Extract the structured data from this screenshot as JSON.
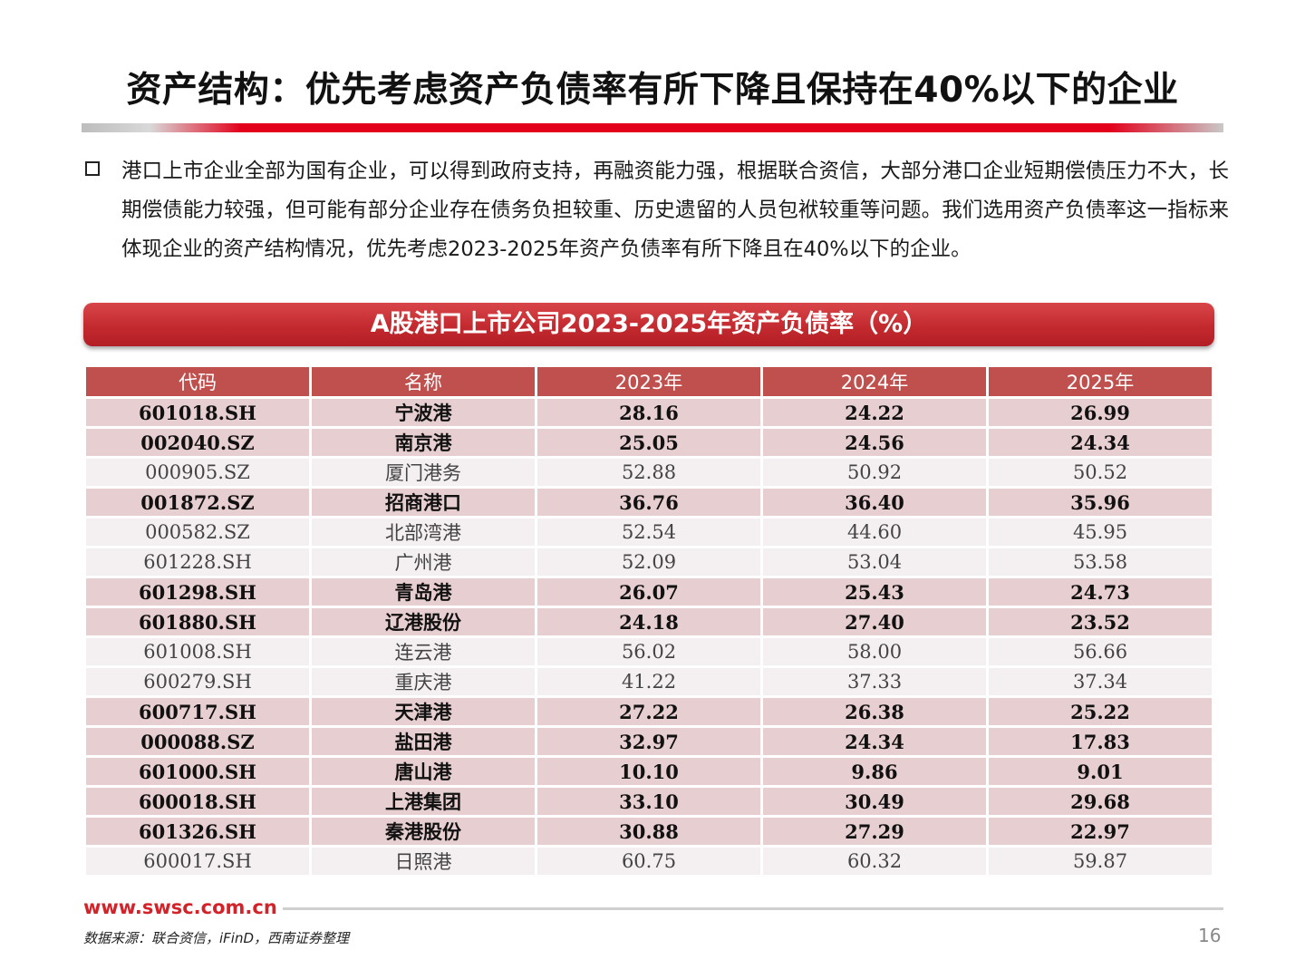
{
  "title": "资产结构：优先考虑资产负债率有所下降且保持在40%以下的企业",
  "bullet_text": "港口上市企业全部为国有企业，可以得到政府支持，再融资能力强，根据联合资信，大部分港口企业短期偿债压力不大，长期偿债能力较强，但可能有部分企业存在债务负担较重、历史遗留的人员包袱较重等问题。我们选用资产负债率这一指标来体现企业的资产结构情况，优先考虑2023-2025年资产负债率有所下降且在40%以下的企业。",
  "table": {
    "title": "A股港口上市公司2023-2025年资产负债率（%）",
    "headers": [
      "代码",
      "名称",
      "2023年",
      "2024年",
      "2025年"
    ],
    "rows": [
      {
        "code": "601018.SH",
        "name": "宁波港",
        "y2023": "28.16",
        "y2024": "24.22",
        "y2025": "26.99",
        "highlight": true
      },
      {
        "code": "002040.SZ",
        "name": "南京港",
        "y2023": "25.05",
        "y2024": "24.56",
        "y2025": "24.34",
        "highlight": true
      },
      {
        "code": "000905.SZ",
        "name": "厦门港务",
        "y2023": "52.88",
        "y2024": "50.92",
        "y2025": "50.52",
        "highlight": false
      },
      {
        "code": "001872.SZ",
        "name": "招商港口",
        "y2023": "36.76",
        "y2024": "36.40",
        "y2025": "35.96",
        "highlight": true
      },
      {
        "code": "000582.SZ",
        "name": "北部湾港",
        "y2023": "52.54",
        "y2024": "44.60",
        "y2025": "45.95",
        "highlight": false
      },
      {
        "code": "601228.SH",
        "name": "广州港",
        "y2023": "52.09",
        "y2024": "53.04",
        "y2025": "53.58",
        "highlight": false
      },
      {
        "code": "601298.SH",
        "name": "青岛港",
        "y2023": "26.07",
        "y2024": "25.43",
        "y2025": "24.73",
        "highlight": true
      },
      {
        "code": "601880.SH",
        "name": "辽港股份",
        "y2023": "24.18",
        "y2024": "27.40",
        "y2025": "23.52",
        "highlight": true
      },
      {
        "code": "601008.SH",
        "name": "连云港",
        "y2023": "56.02",
        "y2024": "58.00",
        "y2025": "56.66",
        "highlight": false
      },
      {
        "code": "600279.SH",
        "name": "重庆港",
        "y2023": "41.22",
        "y2024": "37.33",
        "y2025": "37.34",
        "highlight": false
      },
      {
        "code": "600717.SH",
        "name": "天津港",
        "y2023": "27.22",
        "y2024": "26.38",
        "y2025": "25.22",
        "highlight": true
      },
      {
        "code": "000088.SZ",
        "name": "盐田港",
        "y2023": "32.97",
        "y2024": "24.34",
        "y2025": "17.83",
        "highlight": true
      },
      {
        "code": "601000.SH",
        "name": "唐山港",
        "y2023": "10.10",
        "y2024": "9.86",
        "y2025": "9.01",
        "highlight": true
      },
      {
        "code": "600018.SH",
        "name": "上港集团",
        "y2023": "33.10",
        "y2024": "30.49",
        "y2025": "29.68",
        "highlight": true
      },
      {
        "code": "601326.SH",
        "name": "秦港股份",
        "y2023": "30.88",
        "y2024": "27.29",
        "y2025": "22.97",
        "highlight": true
      },
      {
        "code": "600017.SH",
        "name": "日照港",
        "y2023": "60.75",
        "y2024": "60.32",
        "y2025": "59.87",
        "highlight": false
      }
    ]
  },
  "footer": {
    "url": "www.swsc.com.cn",
    "source": "数据来源：联合资信，iFinD，西南证券整理",
    "page": "16"
  },
  "colors": {
    "brand_red": "#e2001a",
    "header_red": "#c0504d",
    "highlight_row": "#e7ced1",
    "normal_row": "#f4eff0"
  }
}
